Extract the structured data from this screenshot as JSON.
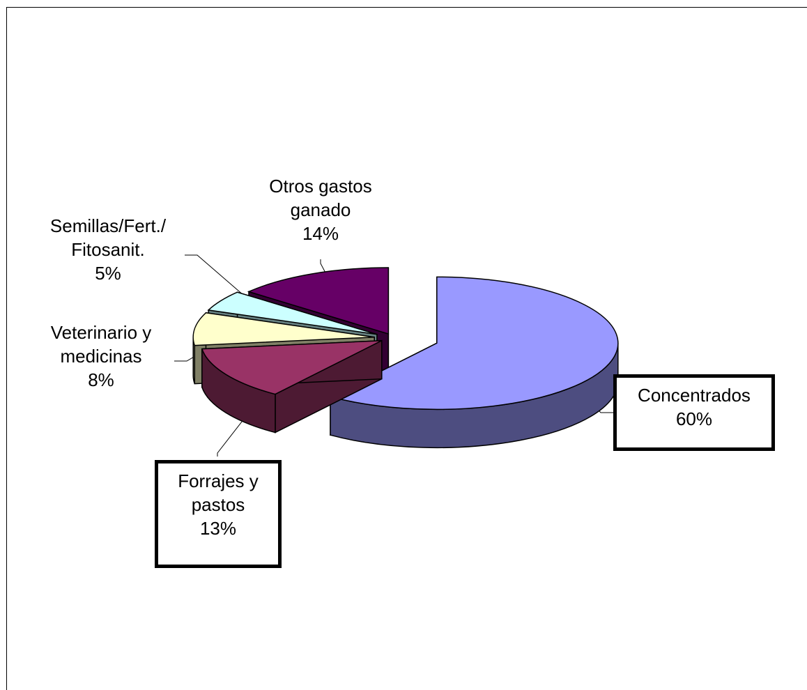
{
  "chart_data": {
    "type": "pie",
    "style": "3d-exploded",
    "slices": [
      {
        "label_lines": [
          "Concentrados"
        ],
        "pct": "60%",
        "value": 60,
        "color": "#9999FF",
        "side_color": "#4D4D80"
      },
      {
        "label_lines": [
          "Forrajes y",
          "pastos"
        ],
        "pct": "13%",
        "value": 13,
        "color": "#993366",
        "side_color": "#4D1A33"
      },
      {
        "label_lines": [
          "Veterinario y",
          "medicinas"
        ],
        "pct": "8%",
        "value": 8,
        "color": "#FFFFCC",
        "side_color": "#808066"
      },
      {
        "label_lines": [
          "Semillas/Fert./",
          "Fitosanit."
        ],
        "pct": "5%",
        "value": 5,
        "color": "#CCFFFF",
        "side_color": "#668080"
      },
      {
        "label_lines": [
          "Otros gastos",
          "ganado"
        ],
        "pct": "14%",
        "value": 14,
        "color": "#660066",
        "side_color": "#330033"
      }
    ]
  }
}
